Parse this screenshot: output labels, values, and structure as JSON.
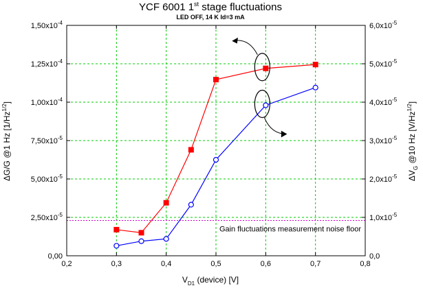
{
  "chart_data": {
    "type": "line",
    "title": "YCF 6001 1",
    "title_sup": "st",
    "title_rest": " stage fluctuations",
    "subtitle": "LED OFF, 14 K  Id=3 mA",
    "xlabel_main": "V",
    "xlabel_sub": "D1",
    "xlabel_rest": " (device) [V]",
    "ylabel_left": "ΔG/G @1 Hz [1/Hz",
    "ylabel_left_sup": "1/2",
    "ylabel_left_end": "]",
    "ylabel_right_main": "ΔV",
    "ylabel_right_sub": "G",
    "ylabel_right_rest": " @10 Hz [V/Hz",
    "ylabel_right_sup": "1/2",
    "ylabel_right_end": "]",
    "xlim": [
      0.2,
      0.8
    ],
    "ylim_left": [
      0,
      0.00015
    ],
    "ylim_right": [
      0,
      6e-05
    ],
    "x_ticks": [
      "0,2",
      "0,3",
      "0,4",
      "0,5",
      "0,6",
      "0,7",
      "0,8"
    ],
    "y_left_ticks": [
      "0,00",
      "2,50x10",
      "5,00x10",
      "7,50x10",
      "1,00x10",
      "1,25x10",
      "1,50x10"
    ],
    "y_left_ticks_exp": [
      "",
      "-5",
      "-5",
      "-5",
      "-4",
      "-4",
      "-4"
    ],
    "y_right_ticks": [
      "0,0",
      "1,0x10",
      "2,0x10",
      "3,0x10",
      "4,0x10",
      "5,0x10",
      "6,0x10"
    ],
    "y_right_ticks_exp": [
      "",
      "-5",
      "-5",
      "-5",
      "-5",
      "-5",
      "-5"
    ],
    "grid": true,
    "series": [
      {
        "axis": "left",
        "color": "#ff0000",
        "marker": "square",
        "x": [
          0.3,
          0.35,
          0.4,
          0.45,
          0.5,
          0.6,
          0.7
        ],
        "y": [
          1.7e-05,
          1.5e-05,
          3.45e-05,
          6.9e-05,
          0.0001147,
          0.000122,
          0.0001245
        ]
      },
      {
        "axis": "right",
        "color": "#0000ff",
        "marker": "circle",
        "x": [
          0.3,
          0.35,
          0.4,
          0.45,
          0.5,
          0.6,
          0.7
        ],
        "y": [
          2.6e-06,
          3.8e-06,
          4.4e-06,
          1.33e-05,
          2.5e-05,
          3.92e-05,
          4.38e-05
        ]
      }
    ],
    "noise_floor": {
      "value": 2.3e-05,
      "axis": "left",
      "color": "#cc00cc",
      "label": "Gain fluctuations measurement noise floor"
    }
  }
}
